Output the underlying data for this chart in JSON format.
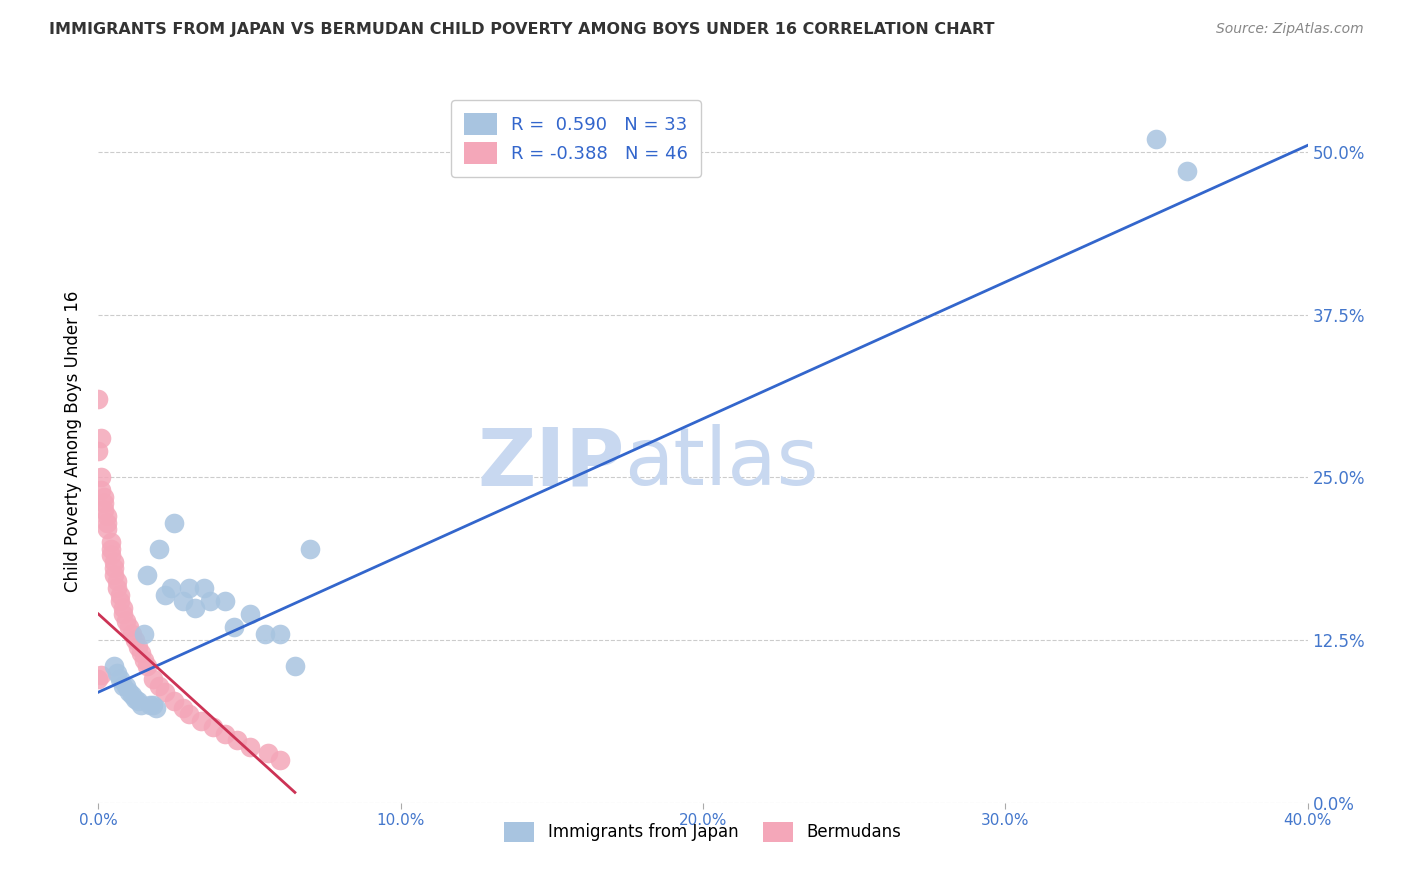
{
  "title": "IMMIGRANTS FROM JAPAN VS BERMUDAN CHILD POVERTY AMONG BOYS UNDER 16 CORRELATION CHART",
  "source": "Source: ZipAtlas.com",
  "ylabel": "Child Poverty Among Boys Under 16",
  "legend_bottom": [
    "Immigrants from Japan",
    "Bermudans"
  ],
  "r_blue": 0.59,
  "n_blue": 33,
  "r_pink": -0.388,
  "n_pink": 46,
  "xmin": 0.0,
  "xmax": 0.4,
  "ymin": 0.0,
  "ymax": 0.555,
  "ytick_vals": [
    0.0,
    0.125,
    0.25,
    0.375,
    0.5
  ],
  "ytick_labels": [
    "0.0%",
    "12.5%",
    "25.0%",
    "37.5%",
    "50.0%"
  ],
  "xtick_vals": [
    0.0,
    0.1,
    0.2,
    0.3,
    0.4
  ],
  "xtick_labels": [
    "0.0%",
    "10.0%",
    "20.0%",
    "30.0%",
    "40.0%"
  ],
  "blue_scatter_x": [
    0.016,
    0.02,
    0.024,
    0.025,
    0.03,
    0.032,
    0.037,
    0.042,
    0.045,
    0.05,
    0.055,
    0.06,
    0.065,
    0.005,
    0.006,
    0.007,
    0.008,
    0.009,
    0.01,
    0.011,
    0.012,
    0.013,
    0.014,
    0.015,
    0.017,
    0.018,
    0.019,
    0.022,
    0.028,
    0.035,
    0.07,
    0.35,
    0.36
  ],
  "blue_scatter_y": [
    0.175,
    0.195,
    0.165,
    0.215,
    0.165,
    0.15,
    0.155,
    0.155,
    0.135,
    0.145,
    0.13,
    0.13,
    0.105,
    0.105,
    0.1,
    0.095,
    0.09,
    0.09,
    0.085,
    0.083,
    0.08,
    0.078,
    0.075,
    0.13,
    0.075,
    0.075,
    0.073,
    0.16,
    0.155,
    0.165,
    0.195,
    0.51,
    0.485
  ],
  "pink_scatter_x": [
    0.0,
    0.0,
    0.001,
    0.001,
    0.001,
    0.002,
    0.002,
    0.002,
    0.003,
    0.003,
    0.003,
    0.004,
    0.004,
    0.004,
    0.005,
    0.005,
    0.005,
    0.006,
    0.006,
    0.007,
    0.007,
    0.008,
    0.008,
    0.009,
    0.01,
    0.011,
    0.012,
    0.013,
    0.014,
    0.015,
    0.016,
    0.018,
    0.02,
    0.022,
    0.025,
    0.028,
    0.03,
    0.034,
    0.038,
    0.042,
    0.046,
    0.05,
    0.056,
    0.06,
    0.0,
    0.001
  ],
  "pink_scatter_y": [
    0.31,
    0.27,
    0.25,
    0.24,
    0.28,
    0.235,
    0.23,
    0.225,
    0.22,
    0.215,
    0.21,
    0.2,
    0.195,
    0.19,
    0.185,
    0.18,
    0.175,
    0.17,
    0.165,
    0.16,
    0.155,
    0.15,
    0.145,
    0.14,
    0.135,
    0.13,
    0.125,
    0.12,
    0.115,
    0.11,
    0.105,
    0.095,
    0.09,
    0.085,
    0.078,
    0.073,
    0.068,
    0.063,
    0.058,
    0.053,
    0.048,
    0.043,
    0.038,
    0.033,
    0.095,
    0.098
  ],
  "blue_line_x": [
    0.0,
    0.4
  ],
  "blue_line_y": [
    0.085,
    0.505
  ],
  "pink_line_x": [
    0.0,
    0.065
  ],
  "pink_line_y": [
    0.145,
    0.008
  ],
  "blue_color": "#a8c4e0",
  "pink_color": "#f4a7b9",
  "blue_line_color": "#3366cc",
  "pink_line_color": "#cc3355",
  "watermark_zip": "ZIP",
  "watermark_atlas": "atlas",
  "watermark_color_zip": "#c8d8f0",
  "watermark_color_atlas": "#c8d8f0",
  "grid_color": "#cccccc",
  "title_color": "#333333",
  "axis_color": "#4477cc",
  "right_tick_color": "#4477cc"
}
